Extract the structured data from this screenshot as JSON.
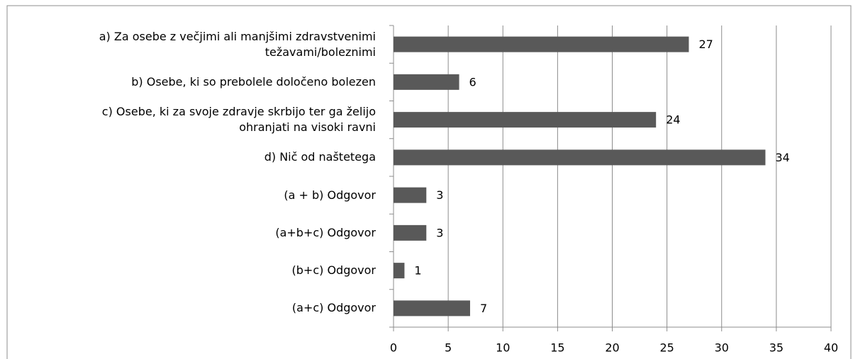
{
  "chart_data": {
    "type": "hbar",
    "categories": [
      "a) Za osebe z večjimi ali manjšimi zdravstvenimi\ntežavami/boleznimi",
      "b) Osebe, ki so prebolele določeno bolezen",
      "c) Osebe, ki za svoje zdravje skrbijo ter ga želijo\nohranjati na visoki ravni",
      "d) Nič od naštetega",
      "(a + b) Odgovor",
      "(a+b+c) Odgovor",
      "(b+c) Odgovor",
      "(a+c) Odgovor"
    ],
    "values": [
      27,
      6,
      24,
      34,
      3,
      3,
      1,
      7
    ],
    "color": "#595959",
    "xlim": [
      0,
      40
    ],
    "xticks": [
      0,
      5,
      10,
      15,
      20,
      25,
      30,
      35,
      40
    ],
    "grid": true
  }
}
